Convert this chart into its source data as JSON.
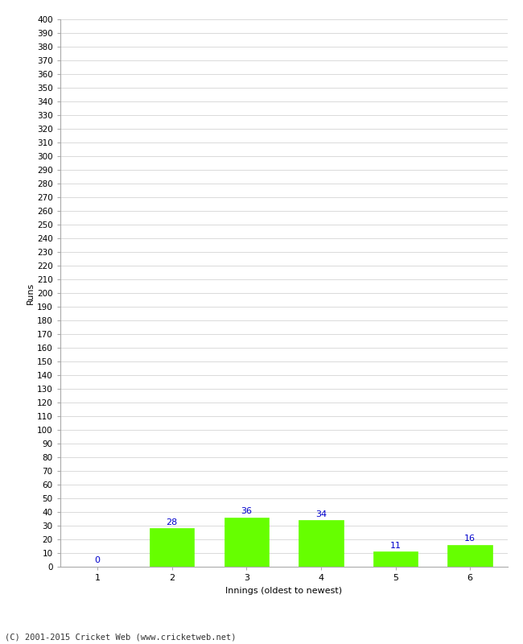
{
  "innings": [
    1,
    2,
    3,
    4,
    5,
    6
  ],
  "runs": [
    0,
    28,
    36,
    34,
    11,
    16
  ],
  "bar_color": "#66ff00",
  "bar_edge_color": "#66ff00",
  "label_color": "#0000cc",
  "xlabel": "Innings (oldest to newest)",
  "ylabel": "Runs",
  "ylim": [
    0,
    400
  ],
  "ytick_step": 10,
  "background_color": "#ffffff",
  "grid_color": "#cccccc",
  "footer": "(C) 2001-2015 Cricket Web (www.cricketweb.net)"
}
